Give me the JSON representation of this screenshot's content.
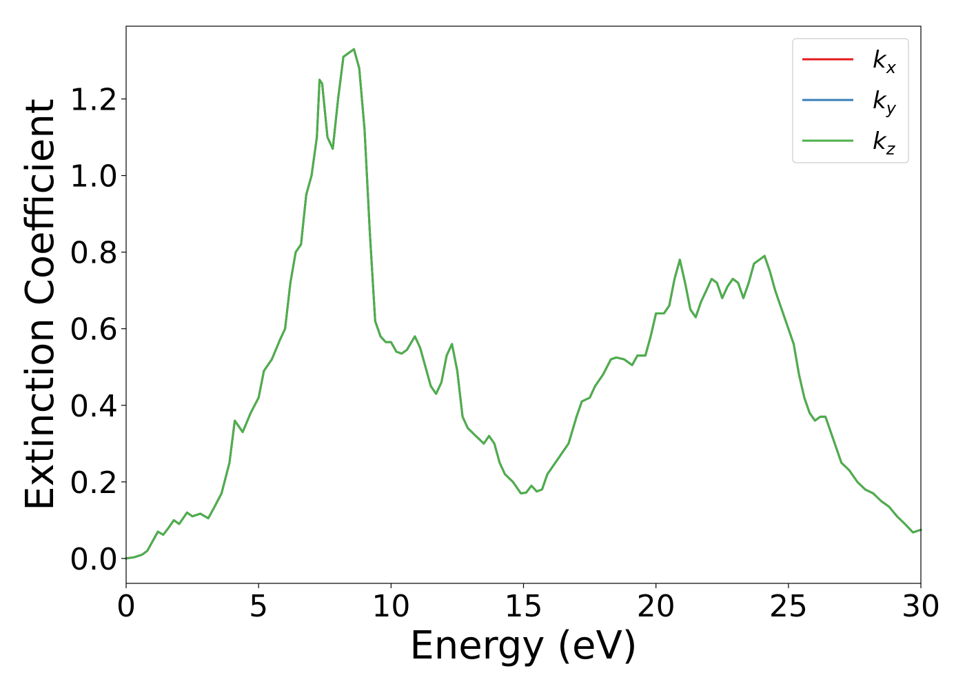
{
  "chart_data": {
    "type": "line",
    "xlabel": "Energy (eV)",
    "ylabel": "Extinction Coefficient",
    "xlim": [
      0,
      30
    ],
    "ylim": [
      -0.065,
      1.39
    ],
    "xticks": [
      0,
      5,
      10,
      15,
      20,
      25,
      30
    ],
    "xtick_labels": [
      "0",
      "5",
      "10",
      "15",
      "20",
      "25",
      "30"
    ],
    "yticks": [
      0.0,
      0.2,
      0.4,
      0.6,
      0.8,
      1.0,
      1.2
    ],
    "ytick_labels": [
      "0.0",
      "0.2",
      "0.4",
      "0.6",
      "0.8",
      "1.0",
      "1.2"
    ],
    "grid": false,
    "legend_position": "top-right",
    "x": [
      0,
      0.3,
      0.6,
      0.8,
      1.0,
      1.2,
      1.4,
      1.6,
      1.8,
      2.0,
      2.3,
      2.5,
      2.8,
      3.1,
      3.3,
      3.6,
      3.9,
      4.1,
      4.4,
      4.7,
      5.0,
      5.2,
      5.5,
      5.8,
      6.0,
      6.2,
      6.4,
      6.6,
      6.8,
      7.0,
      7.2,
      7.3,
      7.4,
      7.6,
      7.8,
      8.0,
      8.2,
      8.4,
      8.6,
      8.8,
      9.0,
      9.2,
      9.4,
      9.6,
      9.8,
      10.0,
      10.2,
      10.4,
      10.6,
      10.9,
      11.1,
      11.3,
      11.5,
      11.7,
      11.9,
      12.1,
      12.3,
      12.5,
      12.7,
      12.9,
      13.2,
      13.5,
      13.7,
      13.9,
      14.1,
      14.3,
      14.6,
      14.9,
      15.1,
      15.3,
      15.5,
      15.7,
      15.9,
      16.1,
      16.4,
      16.7,
      17.0,
      17.2,
      17.5,
      17.7,
      18.0,
      18.3,
      18.5,
      18.8,
      19.1,
      19.3,
      19.6,
      19.8,
      20.0,
      20.3,
      20.5,
      20.7,
      20.9,
      21.1,
      21.3,
      21.5,
      21.7,
      21.9,
      22.1,
      22.3,
      22.5,
      22.7,
      22.9,
      23.1,
      23.3,
      23.5,
      23.7,
      23.9,
      24.1,
      24.3,
      24.5,
      24.8,
      25.0,
      25.2,
      25.4,
      25.6,
      25.8,
      26.0,
      26.2,
      26.4,
      26.6,
      26.8,
      27.0,
      27.3,
      27.6,
      27.9,
      28.2,
      28.5,
      28.8,
      29.1,
      29.4,
      29.7,
      30.0
    ],
    "series": [
      {
        "name": "k_x",
        "color": "#e41a1c",
        "values": [
          0.0,
          0.003,
          0.01,
          0.02,
          0.045,
          0.07,
          0.062,
          0.08,
          0.1,
          0.09,
          0.12,
          0.11,
          0.117,
          0.105,
          0.13,
          0.17,
          0.25,
          0.36,
          0.33,
          0.38,
          0.42,
          0.49,
          0.52,
          0.57,
          0.6,
          0.72,
          0.8,
          0.82,
          0.95,
          1.0,
          1.1,
          1.25,
          1.24,
          1.1,
          1.07,
          1.2,
          1.31,
          1.32,
          1.33,
          1.28,
          1.12,
          0.85,
          0.62,
          0.58,
          0.565,
          0.565,
          0.54,
          0.535,
          0.545,
          0.58,
          0.55,
          0.5,
          0.45,
          0.43,
          0.46,
          0.53,
          0.56,
          0.49,
          0.37,
          0.34,
          0.32,
          0.3,
          0.32,
          0.3,
          0.25,
          0.22,
          0.2,
          0.17,
          0.172,
          0.19,
          0.175,
          0.18,
          0.22,
          0.24,
          0.27,
          0.3,
          0.37,
          0.41,
          0.42,
          0.45,
          0.48,
          0.52,
          0.525,
          0.52,
          0.505,
          0.53,
          0.53,
          0.58,
          0.64,
          0.64,
          0.66,
          0.73,
          0.78,
          0.72,
          0.65,
          0.63,
          0.67,
          0.7,
          0.73,
          0.72,
          0.68,
          0.71,
          0.73,
          0.72,
          0.68,
          0.72,
          0.77,
          0.78,
          0.79,
          0.75,
          0.7,
          0.64,
          0.6,
          0.56,
          0.48,
          0.42,
          0.38,
          0.36,
          0.37,
          0.37,
          0.33,
          0.29,
          0.25,
          0.23,
          0.2,
          0.18,
          0.17,
          0.15,
          0.135,
          0.11,
          0.09,
          0.068,
          0.075
        ]
      },
      {
        "name": "k_y",
        "color": "#377eb8",
        "values": [
          0.0,
          0.003,
          0.01,
          0.02,
          0.045,
          0.07,
          0.062,
          0.08,
          0.1,
          0.09,
          0.12,
          0.11,
          0.117,
          0.105,
          0.13,
          0.17,
          0.25,
          0.36,
          0.33,
          0.38,
          0.42,
          0.49,
          0.52,
          0.57,
          0.6,
          0.72,
          0.8,
          0.82,
          0.95,
          1.0,
          1.1,
          1.25,
          1.24,
          1.1,
          1.07,
          1.2,
          1.31,
          1.32,
          1.33,
          1.28,
          1.12,
          0.85,
          0.62,
          0.58,
          0.565,
          0.565,
          0.54,
          0.535,
          0.545,
          0.58,
          0.55,
          0.5,
          0.45,
          0.43,
          0.46,
          0.53,
          0.56,
          0.49,
          0.37,
          0.34,
          0.32,
          0.3,
          0.32,
          0.3,
          0.25,
          0.22,
          0.2,
          0.17,
          0.172,
          0.19,
          0.175,
          0.18,
          0.22,
          0.24,
          0.27,
          0.3,
          0.37,
          0.41,
          0.42,
          0.45,
          0.48,
          0.52,
          0.525,
          0.52,
          0.505,
          0.53,
          0.53,
          0.58,
          0.64,
          0.64,
          0.66,
          0.73,
          0.78,
          0.72,
          0.65,
          0.63,
          0.67,
          0.7,
          0.73,
          0.72,
          0.68,
          0.71,
          0.73,
          0.72,
          0.68,
          0.72,
          0.77,
          0.78,
          0.79,
          0.75,
          0.7,
          0.64,
          0.6,
          0.56,
          0.48,
          0.42,
          0.38,
          0.36,
          0.37,
          0.37,
          0.33,
          0.29,
          0.25,
          0.23,
          0.2,
          0.18,
          0.17,
          0.15,
          0.135,
          0.11,
          0.09,
          0.068,
          0.075
        ]
      },
      {
        "name": "k_z",
        "color": "#4daf4a",
        "values": [
          0.0,
          0.003,
          0.01,
          0.02,
          0.045,
          0.07,
          0.062,
          0.08,
          0.1,
          0.09,
          0.12,
          0.11,
          0.117,
          0.105,
          0.13,
          0.17,
          0.25,
          0.36,
          0.33,
          0.38,
          0.42,
          0.49,
          0.52,
          0.57,
          0.6,
          0.72,
          0.8,
          0.82,
          0.95,
          1.0,
          1.1,
          1.25,
          1.24,
          1.1,
          1.07,
          1.2,
          1.31,
          1.32,
          1.33,
          1.28,
          1.12,
          0.85,
          0.62,
          0.58,
          0.565,
          0.565,
          0.54,
          0.535,
          0.545,
          0.58,
          0.55,
          0.5,
          0.45,
          0.43,
          0.46,
          0.53,
          0.56,
          0.49,
          0.37,
          0.34,
          0.32,
          0.3,
          0.32,
          0.3,
          0.25,
          0.22,
          0.2,
          0.17,
          0.172,
          0.19,
          0.175,
          0.18,
          0.22,
          0.24,
          0.27,
          0.3,
          0.37,
          0.41,
          0.42,
          0.45,
          0.48,
          0.52,
          0.525,
          0.52,
          0.505,
          0.53,
          0.53,
          0.58,
          0.64,
          0.64,
          0.66,
          0.73,
          0.78,
          0.72,
          0.65,
          0.63,
          0.67,
          0.7,
          0.73,
          0.72,
          0.68,
          0.71,
          0.73,
          0.72,
          0.68,
          0.72,
          0.77,
          0.78,
          0.79,
          0.75,
          0.7,
          0.64,
          0.6,
          0.56,
          0.48,
          0.42,
          0.38,
          0.36,
          0.37,
          0.37,
          0.33,
          0.29,
          0.25,
          0.23,
          0.2,
          0.18,
          0.17,
          0.15,
          0.135,
          0.11,
          0.09,
          0.068,
          0.075
        ]
      }
    ],
    "legend": [
      {
        "base": "k",
        "sub": "x",
        "color": "#e41a1c"
      },
      {
        "base": "k",
        "sub": "y",
        "color": "#377eb8"
      },
      {
        "base": "k",
        "sub": "z",
        "color": "#4daf4a"
      }
    ]
  }
}
